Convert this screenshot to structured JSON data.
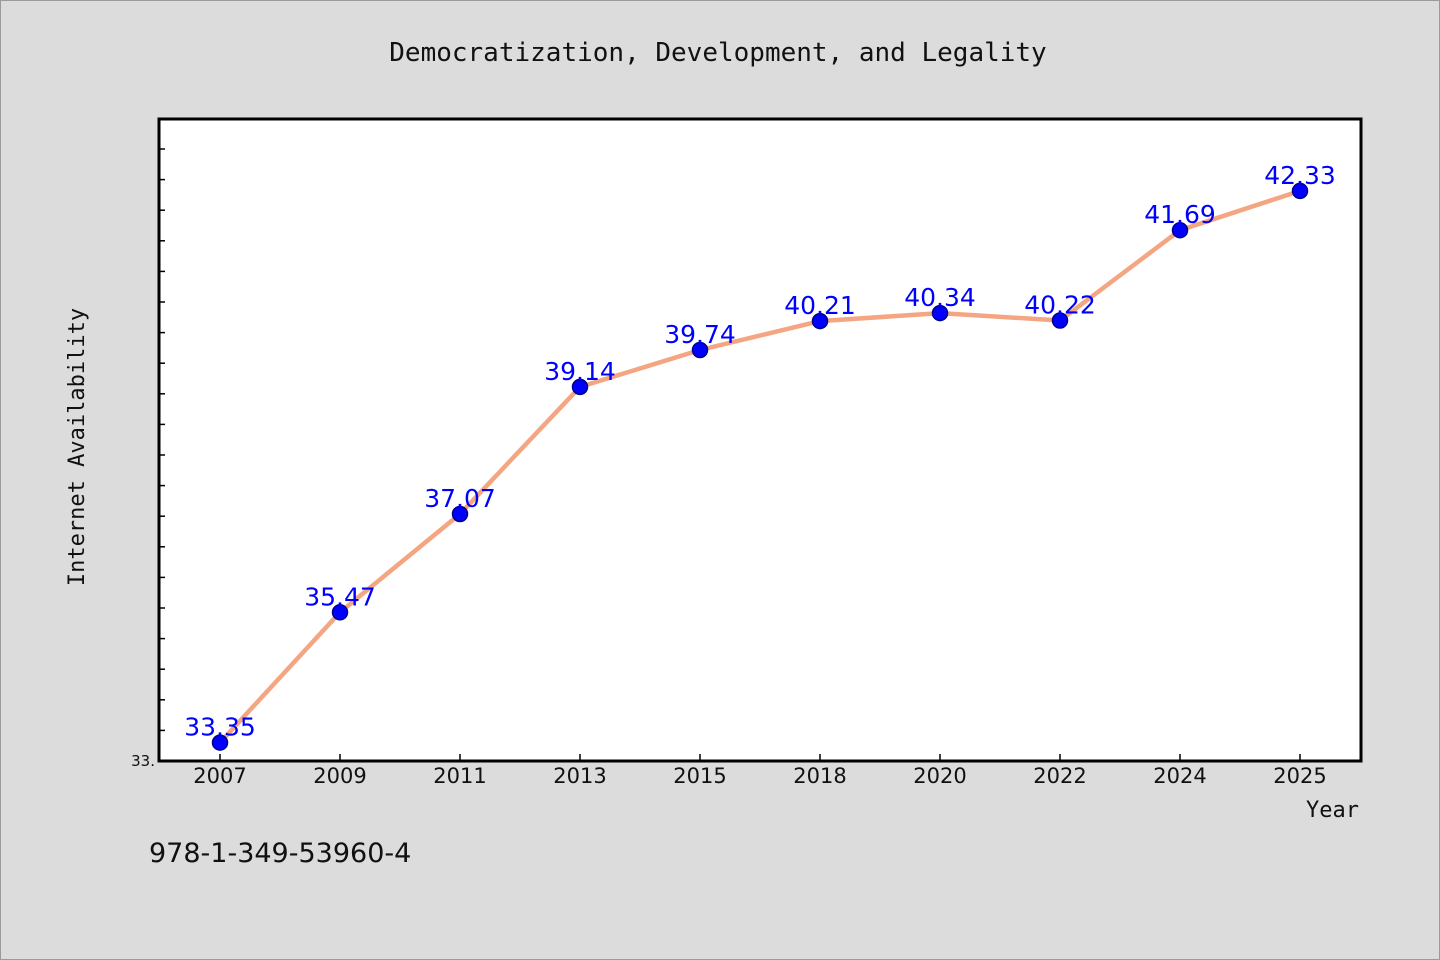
{
  "chart_data": {
    "type": "line",
    "title": "Democratization, Development, and Legality",
    "xlabel": "Year",
    "ylabel": "Internet Availability",
    "categories": [
      "2007",
      "2009",
      "2011",
      "2013",
      "2015",
      "2018",
      "2020",
      "2022",
      "2024",
      "2025"
    ],
    "series": [
      {
        "values": [
          33.35,
          35.47,
          37.07,
          39.14,
          39.74,
          40.21,
          40.34,
          40.22,
          41.69,
          42.33
        ]
      }
    ],
    "data_labels": [
      "33.35",
      "35.47",
      "37.07",
      "39.14",
      "39.74",
      "40.21",
      "40.34",
      "40.22",
      "41.69",
      "42.33"
    ],
    "y_tick_labels": [
      "33."
    ],
    "ylim": [
      33.05,
      43.5
    ],
    "grid": false,
    "legend": "none",
    "colors": {
      "line": "#f4a582",
      "marker_fill": "#0000ff",
      "marker_edge": "#00008b",
      "data_label": "#0000ff",
      "background": "#dcdcdc",
      "plot_background": "#ffffff"
    }
  },
  "footer": {
    "isbn": "978-1-349-53960-4"
  }
}
